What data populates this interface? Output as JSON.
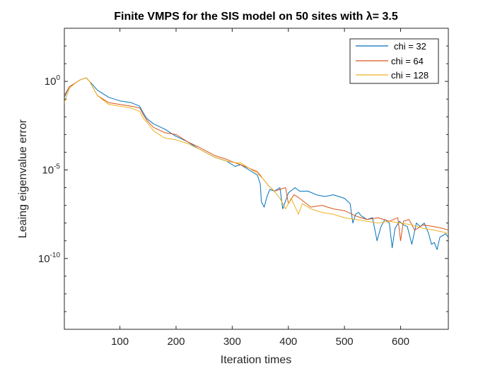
{
  "chart_data": {
    "type": "line",
    "title": "Finite VMPS for the SIS model on 50 sites with λ= 3.5",
    "xlabel": "Iteration times",
    "ylabel": "Leaing eigenvalue error",
    "xlim": [
      1,
      685
    ],
    "ylim_log10": [
      -14,
      3
    ],
    "yscale": "log",
    "grid": false,
    "legend_position": "top-right",
    "x_ticks": [
      "100",
      "200",
      "300",
      "400",
      "500",
      "600"
    ],
    "y_ticks": [
      {
        "base": "10",
        "exp": "0",
        "value_log10": 0
      },
      {
        "base": "10",
        "exp": "-5",
        "value_log10": -5
      },
      {
        "base": "10",
        "exp": "-10",
        "value_log10": -10
      }
    ],
    "series": [
      {
        "name": "chi = 32",
        "color": "#0072BD",
        "x": [
          1,
          10,
          20,
          30,
          40,
          46,
          60,
          80,
          100,
          120,
          135,
          142,
          148,
          160,
          180,
          200,
          220,
          240,
          252,
          270,
          290,
          305,
          315,
          330,
          345,
          350,
          352,
          357,
          362,
          367,
          375,
          385,
          390,
          400,
          412,
          420,
          435,
          450,
          465,
          480,
          500,
          510,
          515,
          520,
          525,
          530,
          540,
          550,
          558,
          565,
          572,
          580,
          585,
          590,
          598,
          605,
          612,
          620,
          628,
          635,
          642,
          650,
          655,
          660,
          665,
          670,
          675,
          680,
          685
        ],
        "log10": [
          -0.9,
          -0.3,
          -0.1,
          0.1,
          0.2,
          0.0,
          -0.5,
          -0.9,
          -1.1,
          -1.2,
          -1.4,
          -1.8,
          -2.1,
          -2.4,
          -2.7,
          -3.1,
          -3.4,
          -3.8,
          -4.0,
          -4.3,
          -4.5,
          -4.8,
          -4.7,
          -5.0,
          -5.3,
          -5.8,
          -6.8,
          -7.1,
          -6.5,
          -6.1,
          -6.2,
          -6.0,
          -7.2,
          -6.3,
          -6.0,
          -6.2,
          -6.2,
          -6.4,
          -6.5,
          -6.4,
          -6.6,
          -6.9,
          -8.0,
          -7.5,
          -7.4,
          -7.6,
          -7.8,
          -7.7,
          -9.0,
          -8.2,
          -7.8,
          -8.0,
          -9.4,
          -8.3,
          -7.9,
          -8.1,
          -8.2,
          -9.2,
          -8.0,
          -8.2,
          -8.0,
          -8.6,
          -9.2,
          -9.1,
          -9.5,
          -8.8,
          -8.7,
          -8.6,
          -8.8
        ]
      },
      {
        "name": "chi = 64",
        "color": "#D95319",
        "x": [
          1,
          10,
          20,
          30,
          40,
          46,
          60,
          80,
          100,
          120,
          135,
          142,
          148,
          160,
          180,
          200,
          220,
          240,
          252,
          270,
          290,
          305,
          315,
          330,
          345,
          355,
          365,
          375,
          385,
          395,
          400,
          410,
          420,
          440,
          460,
          480,
          500,
          520,
          540,
          560,
          580,
          595,
          600,
          605,
          615,
          625,
          640,
          660,
          675,
          685
        ],
        "log10": [
          -0.8,
          -0.3,
          -0.1,
          0.1,
          0.2,
          0.0,
          -0.8,
          -1.2,
          -1.3,
          -1.4,
          -1.5,
          -1.9,
          -2.2,
          -2.6,
          -2.9,
          -3.0,
          -3.4,
          -3.7,
          -3.9,
          -4.2,
          -4.4,
          -4.6,
          -4.7,
          -4.9,
          -5.1,
          -5.5,
          -5.9,
          -6.2,
          -6.1,
          -6.0,
          -6.9,
          -6.4,
          -6.6,
          -7.1,
          -7.0,
          -7.2,
          -7.3,
          -7.6,
          -7.8,
          -7.7,
          -7.9,
          -7.7,
          -9.0,
          -7.9,
          -7.8,
          -8.4,
          -8.1,
          -8.2,
          -8.3,
          -8.4
        ]
      },
      {
        "name": "chi = 128",
        "color": "#EDB120",
        "x": [
          1,
          10,
          20,
          30,
          40,
          46,
          60,
          80,
          100,
          120,
          135,
          142,
          148,
          160,
          180,
          200,
          220,
          240,
          252,
          270,
          290,
          305,
          315,
          330,
          345,
          355,
          365,
          375,
          385,
          395,
          405,
          418,
          425,
          440,
          460,
          480,
          500,
          520,
          540,
          560,
          580,
          600,
          620,
          640,
          660,
          675,
          685
        ],
        "log10": [
          -1.2,
          -0.4,
          -0.1,
          0.1,
          0.2,
          0.0,
          -0.8,
          -1.3,
          -1.4,
          -1.5,
          -1.7,
          -2.1,
          -2.3,
          -2.8,
          -3.2,
          -3.3,
          -3.5,
          -3.8,
          -4.0,
          -4.3,
          -4.5,
          -4.6,
          -4.6,
          -4.9,
          -5.2,
          -5.5,
          -5.9,
          -6.2,
          -6.6,
          -7.2,
          -6.6,
          -7.5,
          -6.9,
          -7.2,
          -7.4,
          -7.5,
          -7.7,
          -7.8,
          -7.9,
          -8.0,
          -7.9,
          -8.0,
          -8.1,
          -8.3,
          -8.4,
          -8.5,
          -8.6
        ]
      }
    ]
  }
}
